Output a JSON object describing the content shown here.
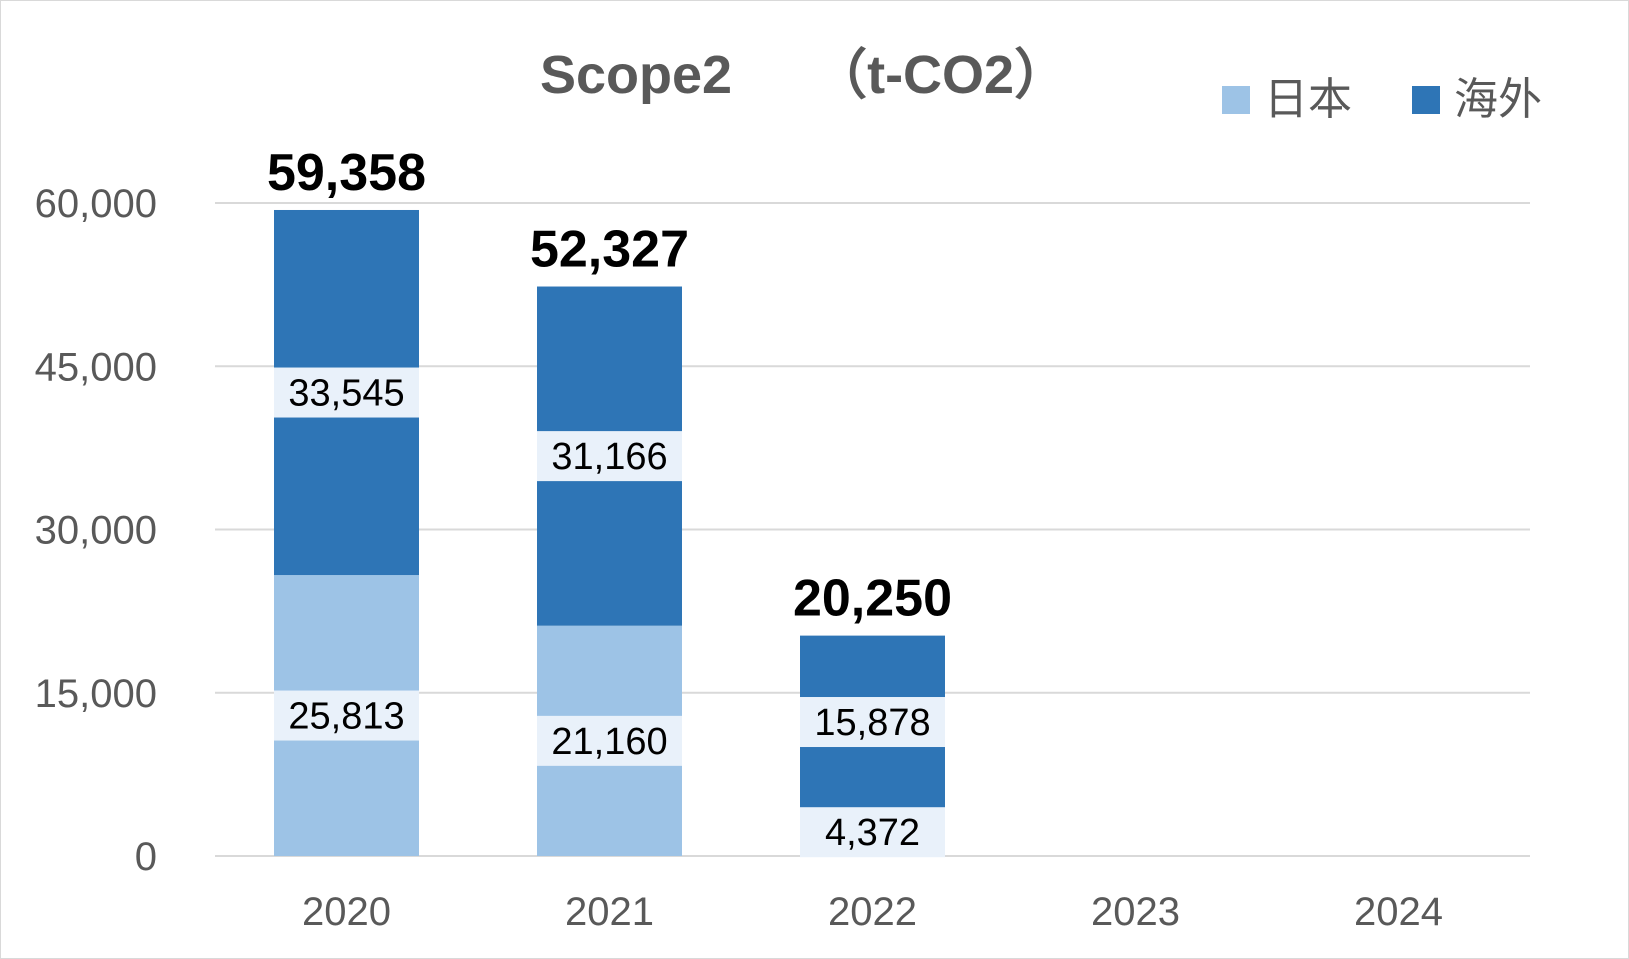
{
  "chart_data": {
    "type": "bar",
    "stacked": true,
    "title": "Scope2　　（t-CO2）",
    "categories": [
      "2020",
      "2021",
      "2022",
      "2023",
      "2024"
    ],
    "series": [
      {
        "name": "日本",
        "color": "#9dc3e6",
        "values": [
          25813,
          21160,
          4372,
          null,
          null
        ],
        "labels": [
          "25,813",
          "21,160",
          "4,372",
          "",
          ""
        ]
      },
      {
        "name": "海外",
        "color": "#2e75b6",
        "values": [
          33545,
          31166,
          15878,
          null,
          null
        ],
        "labels": [
          "33,545",
          "31,166",
          "15,878",
          "",
          ""
        ]
      }
    ],
    "totals": [
      59358,
      52327,
      20250,
      null,
      null
    ],
    "total_labels": [
      "59,358",
      "52,327",
      "20,250",
      "",
      ""
    ],
    "ylim": [
      0,
      60000
    ],
    "yticks": [
      "0",
      "15,000",
      "30,000",
      "45,000",
      "60,000"
    ],
    "ytick_values": [
      0,
      15000,
      30000,
      45000,
      60000
    ],
    "grid": true,
    "legend_position": "top-right",
    "gridline_color": "#d9d9d9",
    "label_box_color": "#e9f1fa"
  }
}
